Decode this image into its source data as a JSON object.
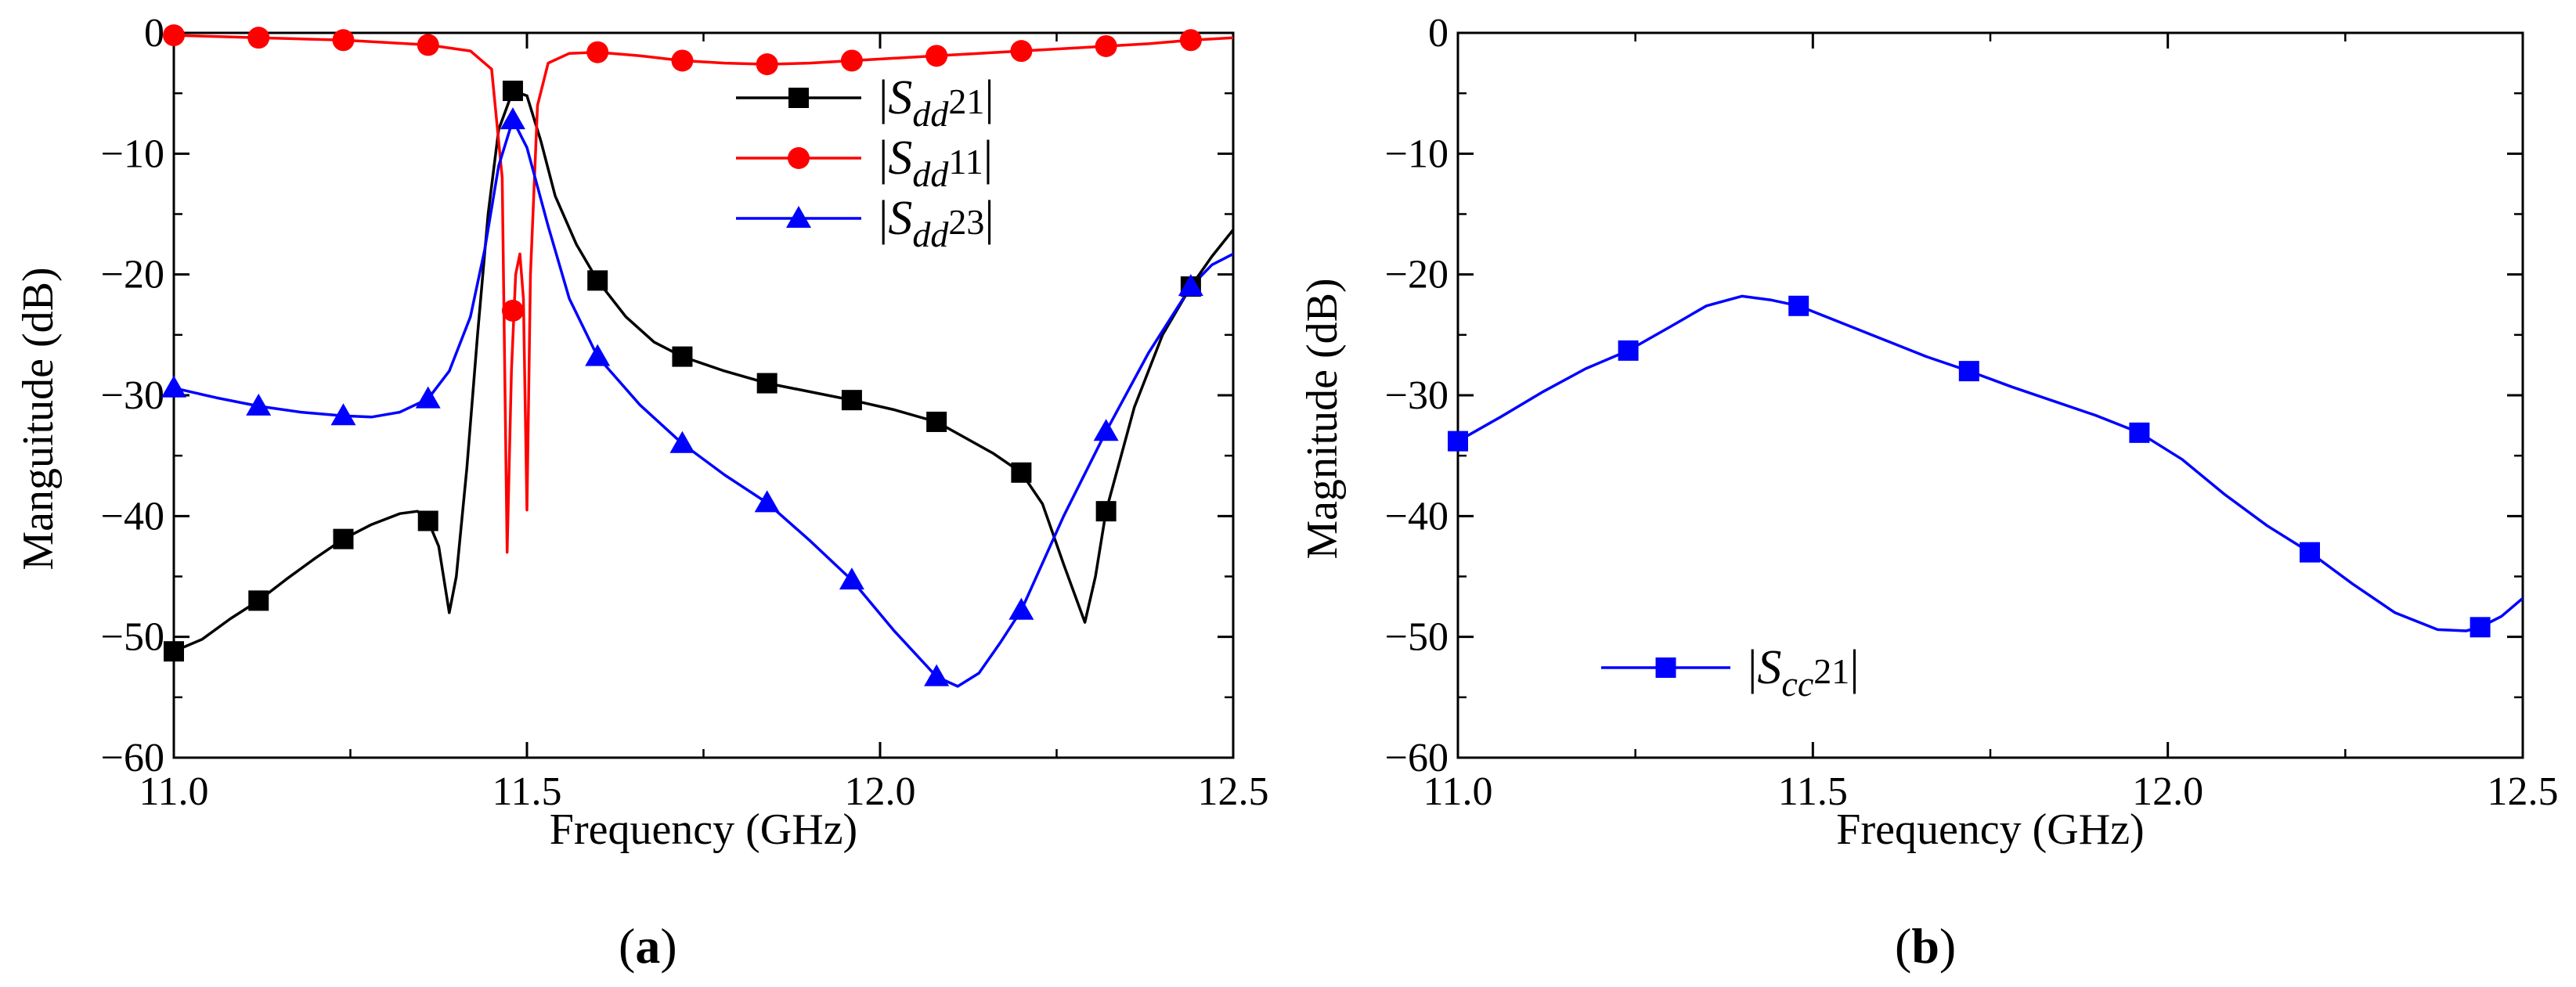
{
  "chart_data": [
    {
      "type": "line",
      "panel": "a",
      "caption_letter": "a",
      "xlabel": "Frequency (GHz)",
      "ylabel": "Manguitude (dB)",
      "xlim": [
        11.0,
        12.5
      ],
      "ylim": [
        -60,
        0
      ],
      "xticks": [
        11.0,
        11.5,
        12.0,
        12.5
      ],
      "xtick_labels": [
        "11.0",
        "11.5",
        "12.0",
        "12.5"
      ],
      "yticks": [
        0,
        -10,
        -20,
        -30,
        -40,
        -50,
        -60
      ],
      "ytick_labels": [
        "0",
        "−10",
        "−20",
        "−30",
        "−40",
        "−50",
        "−60"
      ],
      "legend_position": "top-center",
      "series": [
        {
          "name": "|Sdd21|",
          "legend": {
            "open": "|",
            "sym": "S",
            "sub": "dd",
            "num": "21",
            "close": "|"
          },
          "color": "#000000",
          "marker": "square",
          "curve": [
            [
              11.0,
              -51.2
            ],
            [
              11.04,
              -50.2
            ],
            [
              11.08,
              -48.5
            ],
            [
              11.12,
              -47.0
            ],
            [
              11.16,
              -45.2
            ],
            [
              11.2,
              -43.5
            ],
            [
              11.24,
              -41.9
            ],
            [
              11.28,
              -40.7
            ],
            [
              11.32,
              -39.8
            ],
            [
              11.345,
              -39.6
            ],
            [
              11.36,
              -40.4
            ],
            [
              11.375,
              -42.5
            ],
            [
              11.39,
              -48.0
            ],
            [
              11.4,
              -45.0
            ],
            [
              11.415,
              -36.0
            ],
            [
              11.43,
              -25.0
            ],
            [
              11.445,
              -15.0
            ],
            [
              11.46,
              -8.0
            ],
            [
              11.48,
              -4.8
            ],
            [
              11.5,
              -5.2
            ],
            [
              11.52,
              -9.0
            ],
            [
              11.54,
              -13.5
            ],
            [
              11.57,
              -17.5
            ],
            [
              11.6,
              -20.5
            ],
            [
              11.64,
              -23.5
            ],
            [
              11.68,
              -25.6
            ],
            [
              11.72,
              -26.8
            ],
            [
              11.78,
              -28.0
            ],
            [
              11.84,
              -29.0
            ],
            [
              11.9,
              -29.7
            ],
            [
              11.96,
              -30.4
            ],
            [
              12.02,
              -31.2
            ],
            [
              12.08,
              -32.2
            ],
            [
              12.12,
              -33.5
            ],
            [
              12.16,
              -34.8
            ],
            [
              12.2,
              -36.4
            ],
            [
              12.23,
              -39.0
            ],
            [
              12.26,
              -44.0
            ],
            [
              12.29,
              -48.8
            ],
            [
              12.305,
              -45.0
            ],
            [
              12.32,
              -39.6
            ],
            [
              12.36,
              -31.0
            ],
            [
              12.4,
              -25.0
            ],
            [
              12.44,
              -21.0
            ],
            [
              12.47,
              -18.5
            ],
            [
              12.5,
              -16.3
            ]
          ],
          "markers": [
            [
              11.0,
              -51.2
            ],
            [
              11.12,
              -47.0
            ],
            [
              11.24,
              -41.9
            ],
            [
              11.36,
              -40.4
            ],
            [
              11.48,
              -4.8
            ],
            [
              11.6,
              -20.5
            ],
            [
              11.72,
              -26.8
            ],
            [
              11.84,
              -29.0
            ],
            [
              11.96,
              -30.4
            ],
            [
              12.08,
              -32.2
            ],
            [
              12.2,
              -36.4
            ],
            [
              12.32,
              -39.6
            ],
            [
              12.44,
              -21.0
            ]
          ]
        },
        {
          "name": "|Sdd11|",
          "legend": {
            "open": "|",
            "sym": "S",
            "sub": "dd",
            "num": "11",
            "close": "|"
          },
          "color": "#ff0000",
          "marker": "circle",
          "curve": [
            [
              11.0,
              -0.2
            ],
            [
              11.06,
              -0.3
            ],
            [
              11.12,
              -0.4
            ],
            [
              11.18,
              -0.5
            ],
            [
              11.24,
              -0.6
            ],
            [
              11.3,
              -0.8
            ],
            [
              11.36,
              -1.0
            ],
            [
              11.42,
              -1.5
            ],
            [
              11.45,
              -3.0
            ],
            [
              11.465,
              -12.0
            ],
            [
              11.472,
              -43.0
            ],
            [
              11.478,
              -28.0
            ],
            [
              11.484,
              -20.0
            ],
            [
              11.49,
              -18.3
            ],
            [
              11.495,
              -22.0
            ],
            [
              11.5,
              -39.5
            ],
            [
              11.505,
              -20.0
            ],
            [
              11.515,
              -6.0
            ],
            [
              11.53,
              -2.5
            ],
            [
              11.56,
              -1.7
            ],
            [
              11.6,
              -1.6
            ],
            [
              11.66,
              -1.9
            ],
            [
              11.72,
              -2.3
            ],
            [
              11.78,
              -2.5
            ],
            [
              11.84,
              -2.6
            ],
            [
              11.9,
              -2.5
            ],
            [
              11.96,
              -2.3
            ],
            [
              12.02,
              -2.1
            ],
            [
              12.08,
              -1.9
            ],
            [
              12.14,
              -1.7
            ],
            [
              12.2,
              -1.5
            ],
            [
              12.26,
              -1.3
            ],
            [
              12.32,
              -1.1
            ],
            [
              12.38,
              -0.9
            ],
            [
              12.44,
              -0.6
            ],
            [
              12.5,
              -0.4
            ]
          ],
          "markers": [
            [
              11.0,
              -0.2
            ],
            [
              11.12,
              -0.4
            ],
            [
              11.24,
              -0.6
            ],
            [
              11.36,
              -1.0
            ],
            [
              11.48,
              -23.0
            ],
            [
              11.6,
              -1.6
            ],
            [
              11.72,
              -2.3
            ],
            [
              11.84,
              -2.6
            ],
            [
              11.96,
              -2.3
            ],
            [
              12.08,
              -1.9
            ],
            [
              12.2,
              -1.5
            ],
            [
              12.32,
              -1.1
            ],
            [
              12.44,
              -0.6
            ]
          ]
        },
        {
          "name": "|Sdd23|",
          "legend": {
            "open": "|",
            "sym": "S",
            "sub": "dd",
            "num": "23",
            "close": "|"
          },
          "color": "#0000ff",
          "marker": "triangle",
          "curve": [
            [
              11.0,
              -29.4
            ],
            [
              11.06,
              -30.2
            ],
            [
              11.12,
              -30.9
            ],
            [
              11.18,
              -31.4
            ],
            [
              11.24,
              -31.7
            ],
            [
              11.28,
              -31.8
            ],
            [
              11.32,
              -31.4
            ],
            [
              11.36,
              -30.3
            ],
            [
              11.39,
              -28.0
            ],
            [
              11.42,
              -23.5
            ],
            [
              11.44,
              -18.0
            ],
            [
              11.46,
              -11.0
            ],
            [
              11.48,
              -7.2
            ],
            [
              11.5,
              -9.5
            ],
            [
              11.53,
              -16.0
            ],
            [
              11.56,
              -22.0
            ],
            [
              11.6,
              -26.8
            ],
            [
              11.66,
              -30.8
            ],
            [
              11.72,
              -34.0
            ],
            [
              11.78,
              -36.6
            ],
            [
              11.84,
              -38.9
            ],
            [
              11.9,
              -42.0
            ],
            [
              11.96,
              -45.3
            ],
            [
              12.02,
              -49.5
            ],
            [
              12.08,
              -53.3
            ],
            [
              12.11,
              -54.1
            ],
            [
              12.14,
              -53.0
            ],
            [
              12.17,
              -50.5
            ],
            [
              12.2,
              -47.8
            ],
            [
              12.26,
              -40.0
            ],
            [
              12.32,
              -33.0
            ],
            [
              12.38,
              -26.5
            ],
            [
              12.44,
              -21.0
            ],
            [
              12.47,
              -19.2
            ],
            [
              12.5,
              -18.3
            ]
          ],
          "markers": [
            [
              11.0,
              -29.4
            ],
            [
              11.12,
              -30.9
            ],
            [
              11.24,
              -31.7
            ],
            [
              11.36,
              -30.3
            ],
            [
              11.48,
              -7.2
            ],
            [
              11.6,
              -26.8
            ],
            [
              11.72,
              -34.0
            ],
            [
              11.84,
              -38.9
            ],
            [
              11.96,
              -45.3
            ],
            [
              12.08,
              -53.3
            ],
            [
              12.2,
              -47.8
            ],
            [
              12.32,
              -33.0
            ],
            [
              12.44,
              -21.0
            ]
          ]
        }
      ]
    },
    {
      "type": "line",
      "panel": "b",
      "caption_letter": "b",
      "xlabel": "Frequency (GHz)",
      "ylabel": "Magnitude (dB)",
      "xlim": [
        11.0,
        12.5
      ],
      "ylim": [
        -60,
        0
      ],
      "xticks": [
        11.0,
        11.5,
        12.0,
        12.5
      ],
      "xtick_labels": [
        "11.0",
        "11.5",
        "12.0",
        "12.5"
      ],
      "yticks": [
        0,
        -10,
        -20,
        -30,
        -40,
        -50,
        -60
      ],
      "ytick_labels": [
        "0",
        "−10",
        "−20",
        "−30",
        "−40",
        "−50",
        "−60"
      ],
      "legend_position": "bottom-left",
      "series": [
        {
          "name": "|Scc21|",
          "legend": {
            "open": "|",
            "sym": "S",
            "sub": "cc",
            "num": "21",
            "close": "|"
          },
          "color": "#0000ff",
          "marker": "square",
          "curve": [
            [
              11.0,
              -33.8
            ],
            [
              11.06,
              -31.8
            ],
            [
              11.12,
              -29.7
            ],
            [
              11.18,
              -27.8
            ],
            [
              11.24,
              -26.3
            ],
            [
              11.3,
              -24.3
            ],
            [
              11.35,
              -22.6
            ],
            [
              11.4,
              -21.8
            ],
            [
              11.44,
              -22.1
            ],
            [
              11.48,
              -22.6
            ],
            [
              11.54,
              -24.0
            ],
            [
              11.6,
              -25.4
            ],
            [
              11.66,
              -26.8
            ],
            [
              11.72,
              -28.0
            ],
            [
              11.78,
              -29.3
            ],
            [
              11.84,
              -30.5
            ],
            [
              11.9,
              -31.7
            ],
            [
              11.96,
              -33.1
            ],
            [
              12.02,
              -35.3
            ],
            [
              12.08,
              -38.2
            ],
            [
              12.14,
              -40.8
            ],
            [
              12.2,
              -43.0
            ],
            [
              12.26,
              -45.6
            ],
            [
              12.32,
              -48.0
            ],
            [
              12.38,
              -49.4
            ],
            [
              12.42,
              -49.5
            ],
            [
              12.44,
              -49.2
            ],
            [
              12.47,
              -48.3
            ],
            [
              12.5,
              -46.8
            ]
          ],
          "markers": [
            [
              11.0,
              -33.8
            ],
            [
              11.24,
              -26.3
            ],
            [
              11.48,
              -22.6
            ],
            [
              11.72,
              -28.0
            ],
            [
              11.96,
              -33.1
            ],
            [
              12.2,
              -43.0
            ],
            [
              12.44,
              -49.2
            ]
          ]
        }
      ]
    }
  ]
}
